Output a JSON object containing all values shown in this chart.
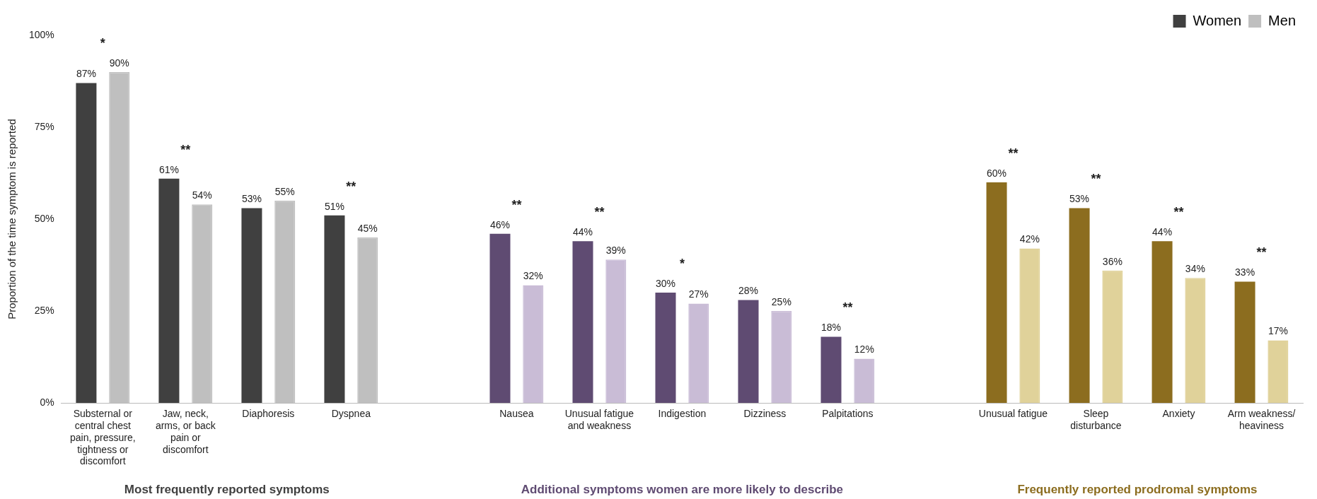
{
  "chart_data": {
    "type": "bar",
    "categories": [
      "Substernal or central chest pain, pressure, tightness or discomfort",
      "Jaw, neck, arms, or back pain or discomfort",
      "Diaphoresis",
      "Dyspnea",
      null,
      "Nausea",
      "Unusual fatigue and weakness",
      "Indigestion",
      "Dizziness",
      "Palpitations",
      null,
      "Unusual fatigue",
      "Sleep disturbance",
      "Anxiety",
      "Arm weakness/ heaviness"
    ],
    "series": [
      {
        "name": "Women",
        "color": "#404040",
        "colors": [
          "#404040",
          "#404040",
          "#404040",
          "#404040",
          null,
          "#5f4b72",
          "#5f4b72",
          "#5f4b72",
          "#5f4b72",
          "#5f4b72",
          null,
          "#8c6d1f",
          "#8c6d1f",
          "#8c6d1f",
          "#8c6d1f"
        ],
        "values": [
          87,
          61,
          53,
          51,
          null,
          46,
          44,
          30,
          28,
          18,
          null,
          60,
          53,
          44,
          33
        ],
        "value_labels": [
          "87%",
          "61%",
          "53%",
          "51%",
          null,
          "46%",
          "44%",
          "30%",
          "28%",
          "18%",
          null,
          "60%",
          "53%",
          "44%",
          "33%"
        ]
      },
      {
        "name": "Men",
        "color": "#bfbfbf",
        "colors": [
          "#bfbfbf",
          "#bfbfbf",
          "#bfbfbf",
          "#bfbfbf",
          null,
          "#c9bcd6",
          "#c9bcd6",
          "#c9bcd6",
          "#c9bcd6",
          "#c9bcd6",
          null,
          "#e0d29a",
          "#e0d29a",
          "#e0d29a",
          "#e0d29a"
        ],
        "values": [
          90,
          54,
          55,
          45,
          null,
          32,
          39,
          27,
          25,
          12,
          null,
          42,
          36,
          34,
          17
        ],
        "value_labels": [
          "90%",
          "54%",
          "55%",
          "45%",
          null,
          "32%",
          "39%",
          "27%",
          "25%",
          "12%",
          null,
          "42%",
          "36%",
          "34%",
          "17%"
        ]
      }
    ],
    "ylabel": "Proportion of the time symptom is reported",
    "ylim": [
      0,
      100
    ],
    "yticks": [
      {
        "value": 0,
        "label": "0%"
      },
      {
        "value": 25,
        "label": "25%"
      },
      {
        "value": 50,
        "label": "50%"
      },
      {
        "value": 75,
        "label": "75%"
      },
      {
        "value": 100,
        "label": "100%"
      }
    ],
    "grid": false,
    "legend": "top right",
    "annotations": [
      "*",
      "**",
      "**",
      "**",
      "**",
      "*",
      "**",
      "**",
      "**",
      "**",
      "**",
      "Most frequently reported symptoms",
      "Additional symptoms women are more likely to describe",
      "Frequently reported prodromal symptoms"
    ]
  }
}
